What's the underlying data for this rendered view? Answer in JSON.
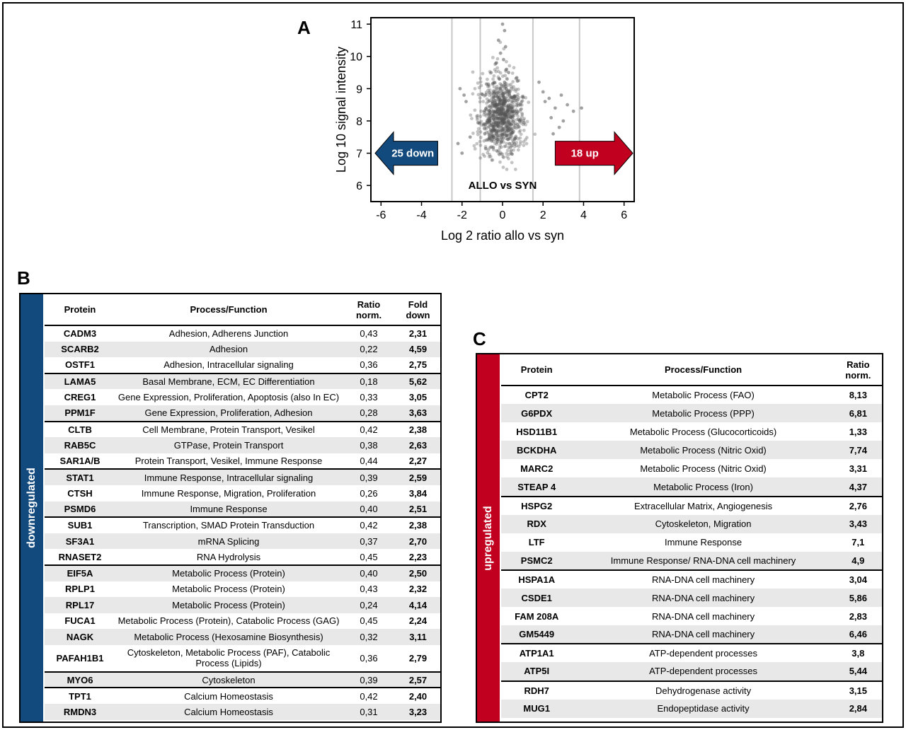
{
  "panels": {
    "a": "A",
    "b": "B",
    "c": "C"
  },
  "colors": {
    "down": "#124a7e",
    "up": "#c0001e",
    "points": "#555555",
    "grid": "#c8c8c8",
    "rowalt": "#e8e8e8"
  },
  "chart_data": {
    "type": "scatter",
    "xlabel": "Log 2 ratio allo vs syn",
    "ylabel": "Log 10 signal intensity",
    "xlim": [
      -6.5,
      6.5
    ],
    "ylim": [
      5.5,
      11.2
    ],
    "xticks": [
      "-6",
      "-4",
      "-2",
      "0",
      "2",
      "4",
      "6"
    ],
    "yticks": [
      "6",
      "7",
      "8",
      "9",
      "10",
      "11"
    ],
    "xtick_values": [
      -6,
      -4,
      -2,
      0,
      2,
      4,
      6
    ],
    "ytick_values": [
      6,
      7,
      8,
      9,
      10,
      11
    ],
    "vlines": [
      -2.5,
      -1.1,
      1.5,
      3.8
    ],
    "annotation": "ALLO vs SYN",
    "down_label": "25 down",
    "up_label": "18 up",
    "cloud": {
      "x_center": -0.05,
      "x_sd": 0.55,
      "y_center": 8.05,
      "y_sd": 0.55,
      "n": 900
    },
    "series": [
      {
        "x": [
          0.0,
          0.1,
          -0.2,
          0.15,
          -0.1,
          0.05,
          0.2,
          -0.3,
          0.3,
          -0.15,
          0.1,
          2.1,
          2.3,
          2.6,
          2.9,
          3.2,
          3.5,
          3.9,
          2.8,
          2.4,
          3.0,
          2.5,
          1.8,
          2.0,
          -2.1,
          -1.8,
          -2.2,
          -2.0,
          -1.6,
          -1.9
        ],
        "y": [
          11.0,
          10.8,
          10.5,
          10.3,
          10.1,
          9.9,
          9.6,
          9.8,
          9.5,
          9.3,
          9.2,
          8.6,
          8.7,
          8.4,
          8.8,
          8.5,
          8.3,
          8.4,
          7.8,
          8.1,
          8.0,
          7.6,
          9.2,
          8.9,
          9.0,
          8.6,
          7.3,
          7.0,
          7.5,
          8.8
        ]
      }
    ]
  },
  "table_b": {
    "sidebar_label": "downregulated",
    "headers": {
      "protein": "Protein",
      "process": "Process/Function",
      "ratio": "Ratio norm.",
      "fold": "Fold down"
    },
    "rows": [
      {
        "protein": "CADM3",
        "process": "Adhesion, Adherens Junction",
        "ratio": "0,43",
        "fold": "2,31"
      },
      {
        "protein": "SCARB2",
        "process": "Adhesion",
        "ratio": "0,22",
        "fold": "4,59"
      },
      {
        "protein": "OSTF1",
        "process": "Adhesion, Intracellular signaling",
        "ratio": "0,36",
        "fold": "2,75"
      },
      {
        "protein": "LAMA5",
        "process": "Basal Membrane, ECM, EC Differentiation",
        "ratio": "0,18",
        "fold": "5,62"
      },
      {
        "protein": "CREG1",
        "process": "Gene Expression, Proliferation, Apoptosis (also In EC)",
        "ratio": "0,33",
        "fold": "3,05"
      },
      {
        "protein": "PPM1F",
        "process": "Gene Expression, Proliferation, Adhesion",
        "ratio": "0,28",
        "fold": "3,63"
      },
      {
        "protein": "CLTB",
        "process": "Cell Membrane, Protein Transport, Vesikel",
        "ratio": "0,42",
        "fold": "2,38"
      },
      {
        "protein": "RAB5C",
        "process": "GTPase, Protein Transport",
        "ratio": "0,38",
        "fold": "2,63"
      },
      {
        "protein": "SAR1A/B",
        "process": "Protein Transport, Vesikel, Immune Response",
        "ratio": "0,44",
        "fold": "2,27"
      },
      {
        "protein": "STAT1",
        "process": "Immune Response, Intracellular signaling",
        "ratio": "0,39",
        "fold": "2,59"
      },
      {
        "protein": "CTSH",
        "process": "Immune Response, Migration, Proliferation",
        "ratio": "0,26",
        "fold": "3,84"
      },
      {
        "protein": "PSMD6",
        "process": "Immune Response",
        "ratio": "0,40",
        "fold": "2,51"
      },
      {
        "protein": "SUB1",
        "process": "Transcription, SMAD Protein Transduction",
        "ratio": "0,42",
        "fold": "2,38"
      },
      {
        "protein": "SF3A1",
        "process": "mRNA Splicing",
        "ratio": "0,37",
        "fold": "2,70"
      },
      {
        "protein": "RNASET2",
        "process": "RNA Hydrolysis",
        "ratio": "0,45",
        "fold": "2,23"
      },
      {
        "protein": "EIF5A",
        "process": "Metabolic Process (Protein)",
        "ratio": "0,40",
        "fold": "2,50"
      },
      {
        "protein": "RPLP1",
        "process": "Metabolic Process (Protein)",
        "ratio": "0,43",
        "fold": "2,32"
      },
      {
        "protein": "RPL17",
        "process": "Metabolic Process (Protein)",
        "ratio": "0,24",
        "fold": "4,14"
      },
      {
        "protein": "FUCA1",
        "process": "Metabolic Process (Protein), Catabolic Process (GAG)",
        "ratio": "0,45",
        "fold": "2,24"
      },
      {
        "protein": "NAGK",
        "process": "Metabolic Process (Hexosamine Biosynthesis)",
        "ratio": "0,32",
        "fold": "3,11"
      },
      {
        "protein": "PAFAH1B1",
        "process": "Cytoskeleton, Metabolic Process (PAF), Catabolic Process (Lipids)",
        "ratio": "0,36",
        "fold": "2,79"
      },
      {
        "protein": "MYO6",
        "process": "Cytoskeleton",
        "ratio": "0,39",
        "fold": "2,57"
      },
      {
        "protein": "TPT1",
        "process": "Calcium Homeostasis",
        "ratio": "0,42",
        "fold": "2,40"
      },
      {
        "protein": "RMDN3",
        "process": "Calcium Homeostasis",
        "ratio": "0,31",
        "fold": "3,23"
      }
    ]
  },
  "table_c": {
    "sidebar_label": "upregulated",
    "headers": {
      "protein": "Protein",
      "process": "Process/Function",
      "ratio": "Ratio norm."
    },
    "rows": [
      {
        "protein": "CPT2",
        "process": "Metabolic Process (FAO)",
        "ratio": "8,13"
      },
      {
        "protein": "G6PDX",
        "process": "Metabolic Process (PPP)",
        "ratio": "6,81"
      },
      {
        "protein": "HSD11B1",
        "process": "Metabolic Process (Glucocorticoids)",
        "ratio": "1,33"
      },
      {
        "protein": "BCKDHA",
        "process": "Metabolic Process (Nitric Oxid)",
        "ratio": "7,74"
      },
      {
        "protein": "MARC2",
        "process": "Metabolic Process (Nitric Oxid)",
        "ratio": "3,31"
      },
      {
        "protein": "STEAP 4",
        "process": "Metabolic Process (Iron)",
        "ratio": "4,37"
      },
      {
        "protein": "HSPG2",
        "process": "Extracellular Matrix, Angiogenesis",
        "ratio": "2,76"
      },
      {
        "protein": "RDX",
        "process": "Cytoskeleton, Migration",
        "ratio": "3,43"
      },
      {
        "protein": "LTF",
        "process": "Immune Response",
        "ratio": "7,1"
      },
      {
        "protein": "PSMC2",
        "process": "Immune Response/ RNA-DNA cell machinery",
        "ratio": "4,9"
      },
      {
        "protein": "HSPA1A",
        "process": "RNA-DNA cell machinery",
        "ratio": "3,04"
      },
      {
        "protein": "CSDE1",
        "process": "RNA-DNA cell machinery",
        "ratio": "5,86"
      },
      {
        "protein": "FAM 208A",
        "process": "RNA-DNA cell machinery",
        "ratio": "2,83"
      },
      {
        "protein": "GM5449",
        "process": "RNA-DNA cell machinery",
        "ratio": "6,46"
      },
      {
        "protein": "ATP1A1",
        "process": "ATP-dependent processes",
        "ratio": "3,8"
      },
      {
        "protein": "ATP5I",
        "process": "ATP-dependent processes",
        "ratio": "5,44"
      },
      {
        "protein": "RDH7",
        "process": "Dehydrogenase activity",
        "ratio": "3,15"
      },
      {
        "protein": "MUG1",
        "process": "Endopeptidase activity",
        "ratio": "2,84"
      }
    ]
  }
}
